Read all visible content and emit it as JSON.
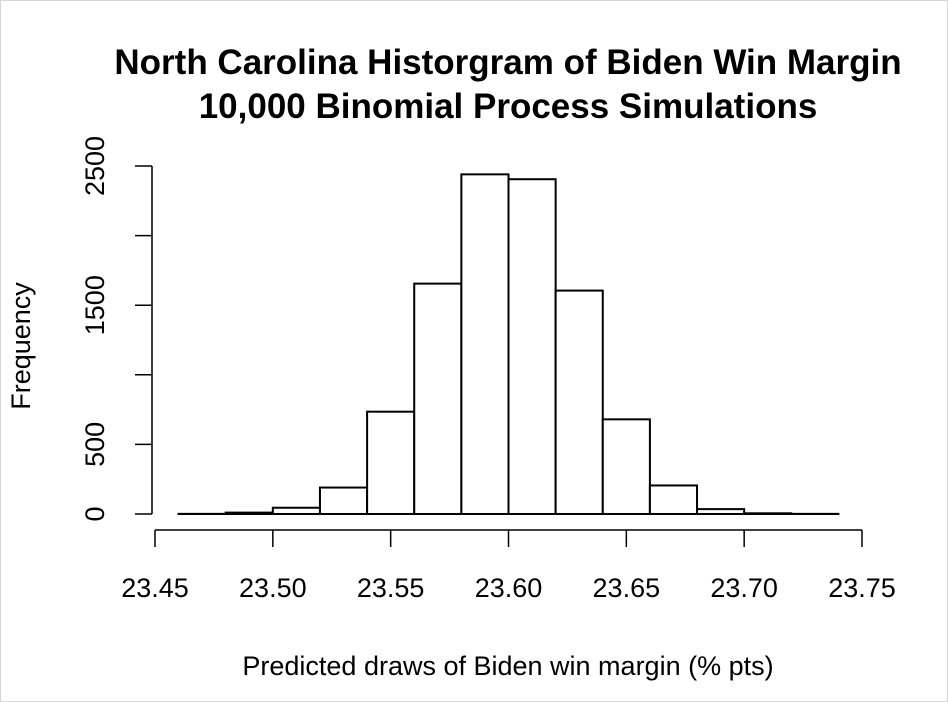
{
  "chart_data": {
    "type": "bar",
    "title": "North Carolina  Historgram of Biden Win Margin",
    "subtitle": "10,000 Binomial Process Simulations",
    "xlabel": "Predicted draws of Biden win margin (% pts)",
    "ylabel": "Frequency",
    "xlim": [
      23.45,
      23.75
    ],
    "ylim": [
      0,
      2500
    ],
    "x_ticks": [
      "23.45",
      "23.50",
      "23.55",
      "23.60",
      "23.65",
      "23.70",
      "23.75"
    ],
    "y_ticks": [
      "0",
      "500",
      "1500",
      "2500"
    ],
    "y_tick_marks": [
      0,
      500,
      1000,
      1500,
      2000,
      2500
    ],
    "bins": [
      {
        "start": 23.46,
        "end": 23.48,
        "count": 1
      },
      {
        "start": 23.48,
        "end": 23.5,
        "count": 10
      },
      {
        "start": 23.5,
        "end": 23.52,
        "count": 45
      },
      {
        "start": 23.52,
        "end": 23.54,
        "count": 190
      },
      {
        "start": 23.54,
        "end": 23.56,
        "count": 735
      },
      {
        "start": 23.56,
        "end": 23.58,
        "count": 1655
      },
      {
        "start": 23.58,
        "end": 23.6,
        "count": 2440
      },
      {
        "start": 23.6,
        "end": 23.62,
        "count": 2405
      },
      {
        "start": 23.62,
        "end": 23.64,
        "count": 1605
      },
      {
        "start": 23.64,
        "end": 23.66,
        "count": 680
      },
      {
        "start": 23.66,
        "end": 23.68,
        "count": 205
      },
      {
        "start": 23.68,
        "end": 23.7,
        "count": 35
      },
      {
        "start": 23.7,
        "end": 23.72,
        "count": 5
      },
      {
        "start": 23.72,
        "end": 23.74,
        "count": 1
      }
    ],
    "bar_fill": "#ffffff",
    "bar_stroke": "#000000",
    "grid": false,
    "legend": "none"
  }
}
